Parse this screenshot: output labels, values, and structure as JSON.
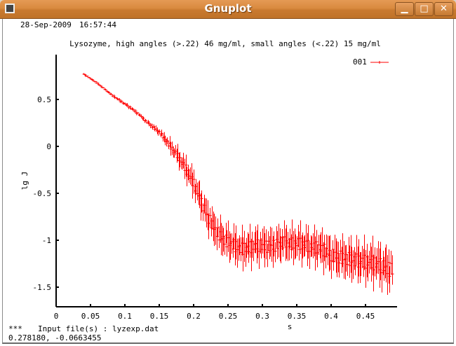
{
  "window": {
    "title": "Gnuplot",
    "buttons": {
      "minimize": "▁",
      "maximize": "□",
      "close": "✕"
    },
    "app_icon": "gnuplot-window-icon"
  },
  "header": {
    "date": "28-Sep-2009",
    "time": "16:57:44"
  },
  "footer": {
    "marker": "***",
    "input_label": "Input file(s) : lyzexp.dat",
    "cursor_coords": "0.278180, -0.0663455"
  },
  "colors": {
    "series": "#ff0000",
    "axis": "#000000",
    "titlebar": "#d98a3f"
  },
  "chart_data": {
    "type": "scatter",
    "title": "Lysozyme, high angles (>.22) 46 mg/ml, small angles (<.22) 15 mg/ml",
    "xlabel": "s",
    "ylabel": "lg J",
    "xlim": [
      0,
      0.495
    ],
    "ylim": [
      -1.71,
      0.98
    ],
    "grid": false,
    "legend_position": "top-right",
    "x_ticks": [
      "0",
      "0.05",
      "0.1",
      "0.15",
      "0.2",
      "0.25",
      "0.3",
      "0.35",
      "0.4",
      "0.45"
    ],
    "y_ticks": [
      "0.5",
      "0",
      "-0.5",
      "-1",
      "-1.5"
    ],
    "series": [
      {
        "name": "001",
        "style": "errorbars",
        "x": [
          0.04,
          0.05,
          0.06,
          0.07,
          0.08,
          0.09,
          0.1,
          0.11,
          0.12,
          0.13,
          0.14,
          0.15,
          0.16,
          0.17,
          0.18,
          0.19,
          0.2,
          0.21,
          0.22,
          0.23,
          0.24,
          0.25,
          0.26,
          0.27,
          0.28,
          0.29,
          0.3,
          0.31,
          0.32,
          0.33,
          0.34,
          0.35,
          0.36,
          0.37,
          0.38,
          0.39,
          0.4,
          0.41,
          0.42,
          0.43,
          0.44,
          0.45,
          0.46,
          0.47,
          0.48,
          0.49
        ],
        "y": [
          0.77,
          0.72,
          0.67,
          0.61,
          0.55,
          0.5,
          0.45,
          0.4,
          0.34,
          0.27,
          0.21,
          0.15,
          0.06,
          -0.04,
          -0.14,
          -0.26,
          -0.4,
          -0.58,
          -0.75,
          -0.88,
          -0.97,
          -1.02,
          -1.06,
          -1.09,
          -1.08,
          -1.05,
          -1.06,
          -1.07,
          -1.05,
          -1.02,
          -1.04,
          -1.03,
          -1.05,
          -1.07,
          -1.08,
          -1.11,
          -1.16,
          -1.18,
          -1.19,
          -1.21,
          -1.22,
          -1.23,
          -1.24,
          -1.26,
          -1.3,
          -1.32
        ],
        "yerr": [
          0.01,
          0.01,
          0.01,
          0.01,
          0.015,
          0.015,
          0.02,
          0.02,
          0.02,
          0.025,
          0.03,
          0.04,
          0.06,
          0.08,
          0.1,
          0.12,
          0.14,
          0.15,
          0.16,
          0.17,
          0.17,
          0.17,
          0.18,
          0.18,
          0.18,
          0.18,
          0.18,
          0.18,
          0.18,
          0.18,
          0.18,
          0.18,
          0.18,
          0.18,
          0.18,
          0.19,
          0.19,
          0.19,
          0.2,
          0.2,
          0.2,
          0.2,
          0.21,
          0.21,
          0.21,
          0.22
        ]
      }
    ]
  }
}
